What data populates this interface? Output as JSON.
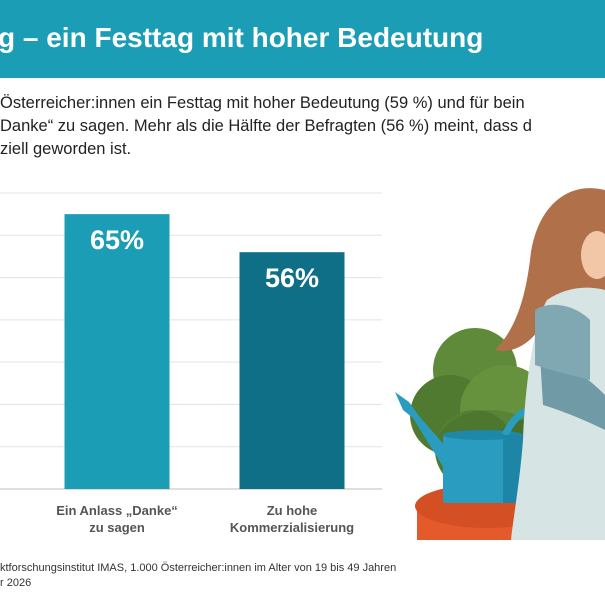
{
  "header": {
    "title": "g – ein Festtag mit hoher Bedeutung"
  },
  "intro": {
    "line1": "Österreicher:innen ein Festtag mit hoher Bedeutung (59 %) und für bein",
    "line2": "Danke“ zu sagen. Mehr als die Hälfte der Befragten (56 %) meint, dass d",
    "line3": "ziell geworden ist."
  },
  "chart_data": {
    "type": "bar",
    "categories": [
      "Ein Anlass „Danke“ zu sagen",
      "Zu hohe Kommerzialisierung"
    ],
    "category_lines": [
      [
        "Ein Anlass „Danke“",
        "zu sagen"
      ],
      [
        "Zu hohe",
        "Kommerzialisierung"
      ]
    ],
    "values": [
      65,
      56
    ],
    "value_labels": [
      "65%",
      "56%"
    ],
    "colors": [
      "#1b9eb5",
      "#0f6f87"
    ],
    "ylim": [
      0,
      70
    ],
    "grid": true
  },
  "source": {
    "line1": "ktforschungsinstitut IMAS, 1.000 Österreicher:innen im Alter von 19 bis 49 Jahren",
    "line2": "r 2026"
  }
}
